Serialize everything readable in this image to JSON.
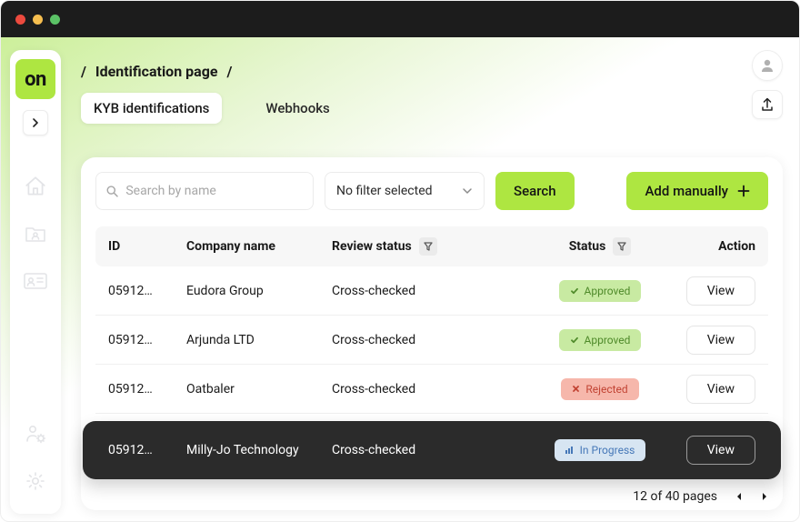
{
  "window": {
    "traffic_colors": [
      "#ec4a3e",
      "#f6be4f",
      "#5bc266"
    ]
  },
  "sidebar": {
    "logo_text": "on",
    "logo_bg": "#aee641"
  },
  "header": {
    "breadcrumb_title": "Identification page",
    "tabs": [
      {
        "label": "KYB identifications",
        "active": true
      },
      {
        "label": "Webhooks",
        "active": false
      }
    ]
  },
  "toolbar": {
    "search_placeholder": "Search by name",
    "filter_label": "No filter selected",
    "search_button": "Search",
    "add_button": "Add manually"
  },
  "table": {
    "columns": {
      "id": "ID",
      "company": "Company name",
      "review": "Review status",
      "status": "Status",
      "action": "Action"
    },
    "rows": [
      {
        "id": "05912…",
        "company": "Eudora Group",
        "review": "Cross-checked",
        "status": {
          "label": "Approved",
          "kind": "approved",
          "bg": "#c8eaa2",
          "fg": "#4f8a2a",
          "icon": "check"
        },
        "action": "View",
        "highlight": false
      },
      {
        "id": "05912…",
        "company": "Arjunda LTD",
        "review": "Cross-checked",
        "status": {
          "label": "Approved",
          "kind": "approved",
          "bg": "#c8eaa2",
          "fg": "#4f8a2a",
          "icon": "check"
        },
        "action": "View",
        "highlight": false
      },
      {
        "id": "05912…",
        "company": "Oatbaler",
        "review": "Cross-checked",
        "status": {
          "label": "Rejected",
          "kind": "rejected",
          "bg": "#f6b7ab",
          "fg": "#c24434",
          "icon": "x"
        },
        "action": "View",
        "highlight": false
      },
      {
        "id": "05912…",
        "company": "Milly-Jo Technology",
        "review": "Cross-checked",
        "status": {
          "label": "In Progress",
          "kind": "progress",
          "bg": "#d7e5f2",
          "fg": "#4678b8",
          "icon": "bars"
        },
        "action": "View",
        "highlight": true
      }
    ]
  },
  "footer": {
    "page_label": "12 of 40 pages"
  },
  "colors": {
    "accent": "#aee641"
  }
}
